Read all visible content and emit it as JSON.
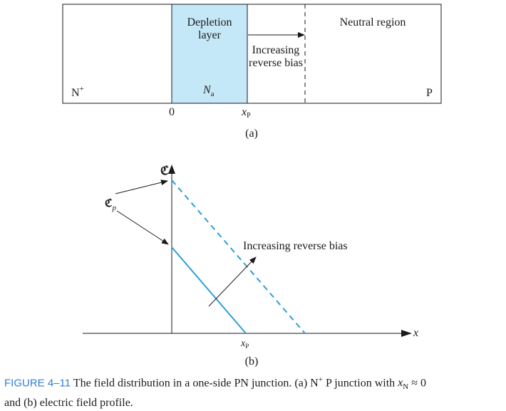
{
  "panel_a": {
    "depletion_label_1": "Depletion",
    "depletion_label_2": "layer",
    "neutral_label": "Neutral region",
    "increasing_1": "Increasing",
    "increasing_2": "reverse bias",
    "n_plus": "N",
    "n_plus_sup": "+",
    "na_main": "N",
    "na_sub": "a",
    "p_label": "P",
    "tick_zero": "0",
    "tick_xp_main": "x",
    "tick_xp_sub": "P",
    "panel_caption": "(a)",
    "colors": {
      "depletion_fill": "#c5e8f8",
      "line": "#1a1a1a"
    }
  },
  "panel_b": {
    "field_symbol": "ℭ",
    "field_p_main": "ℭ",
    "field_p_sub": "p",
    "increasing_label": "Increasing reverse bias",
    "x_axis_label": "x",
    "xp_main": "x",
    "xp_sub": "P",
    "panel_caption": "(b)",
    "colors": {
      "field_line": "#2aa0d8",
      "axis": "#1a1a1a"
    }
  },
  "caption": {
    "figure_label": "FIGURE 4–11",
    "text_1": " The field distribution in a one-side PN junction. (a) N",
    "sup_plus": "+",
    "text_2": " P junction with ",
    "xn_main": "x",
    "xn_sub": "N",
    "text_3": " ≈ 0",
    "line_2": "and (b) electric field profile."
  }
}
